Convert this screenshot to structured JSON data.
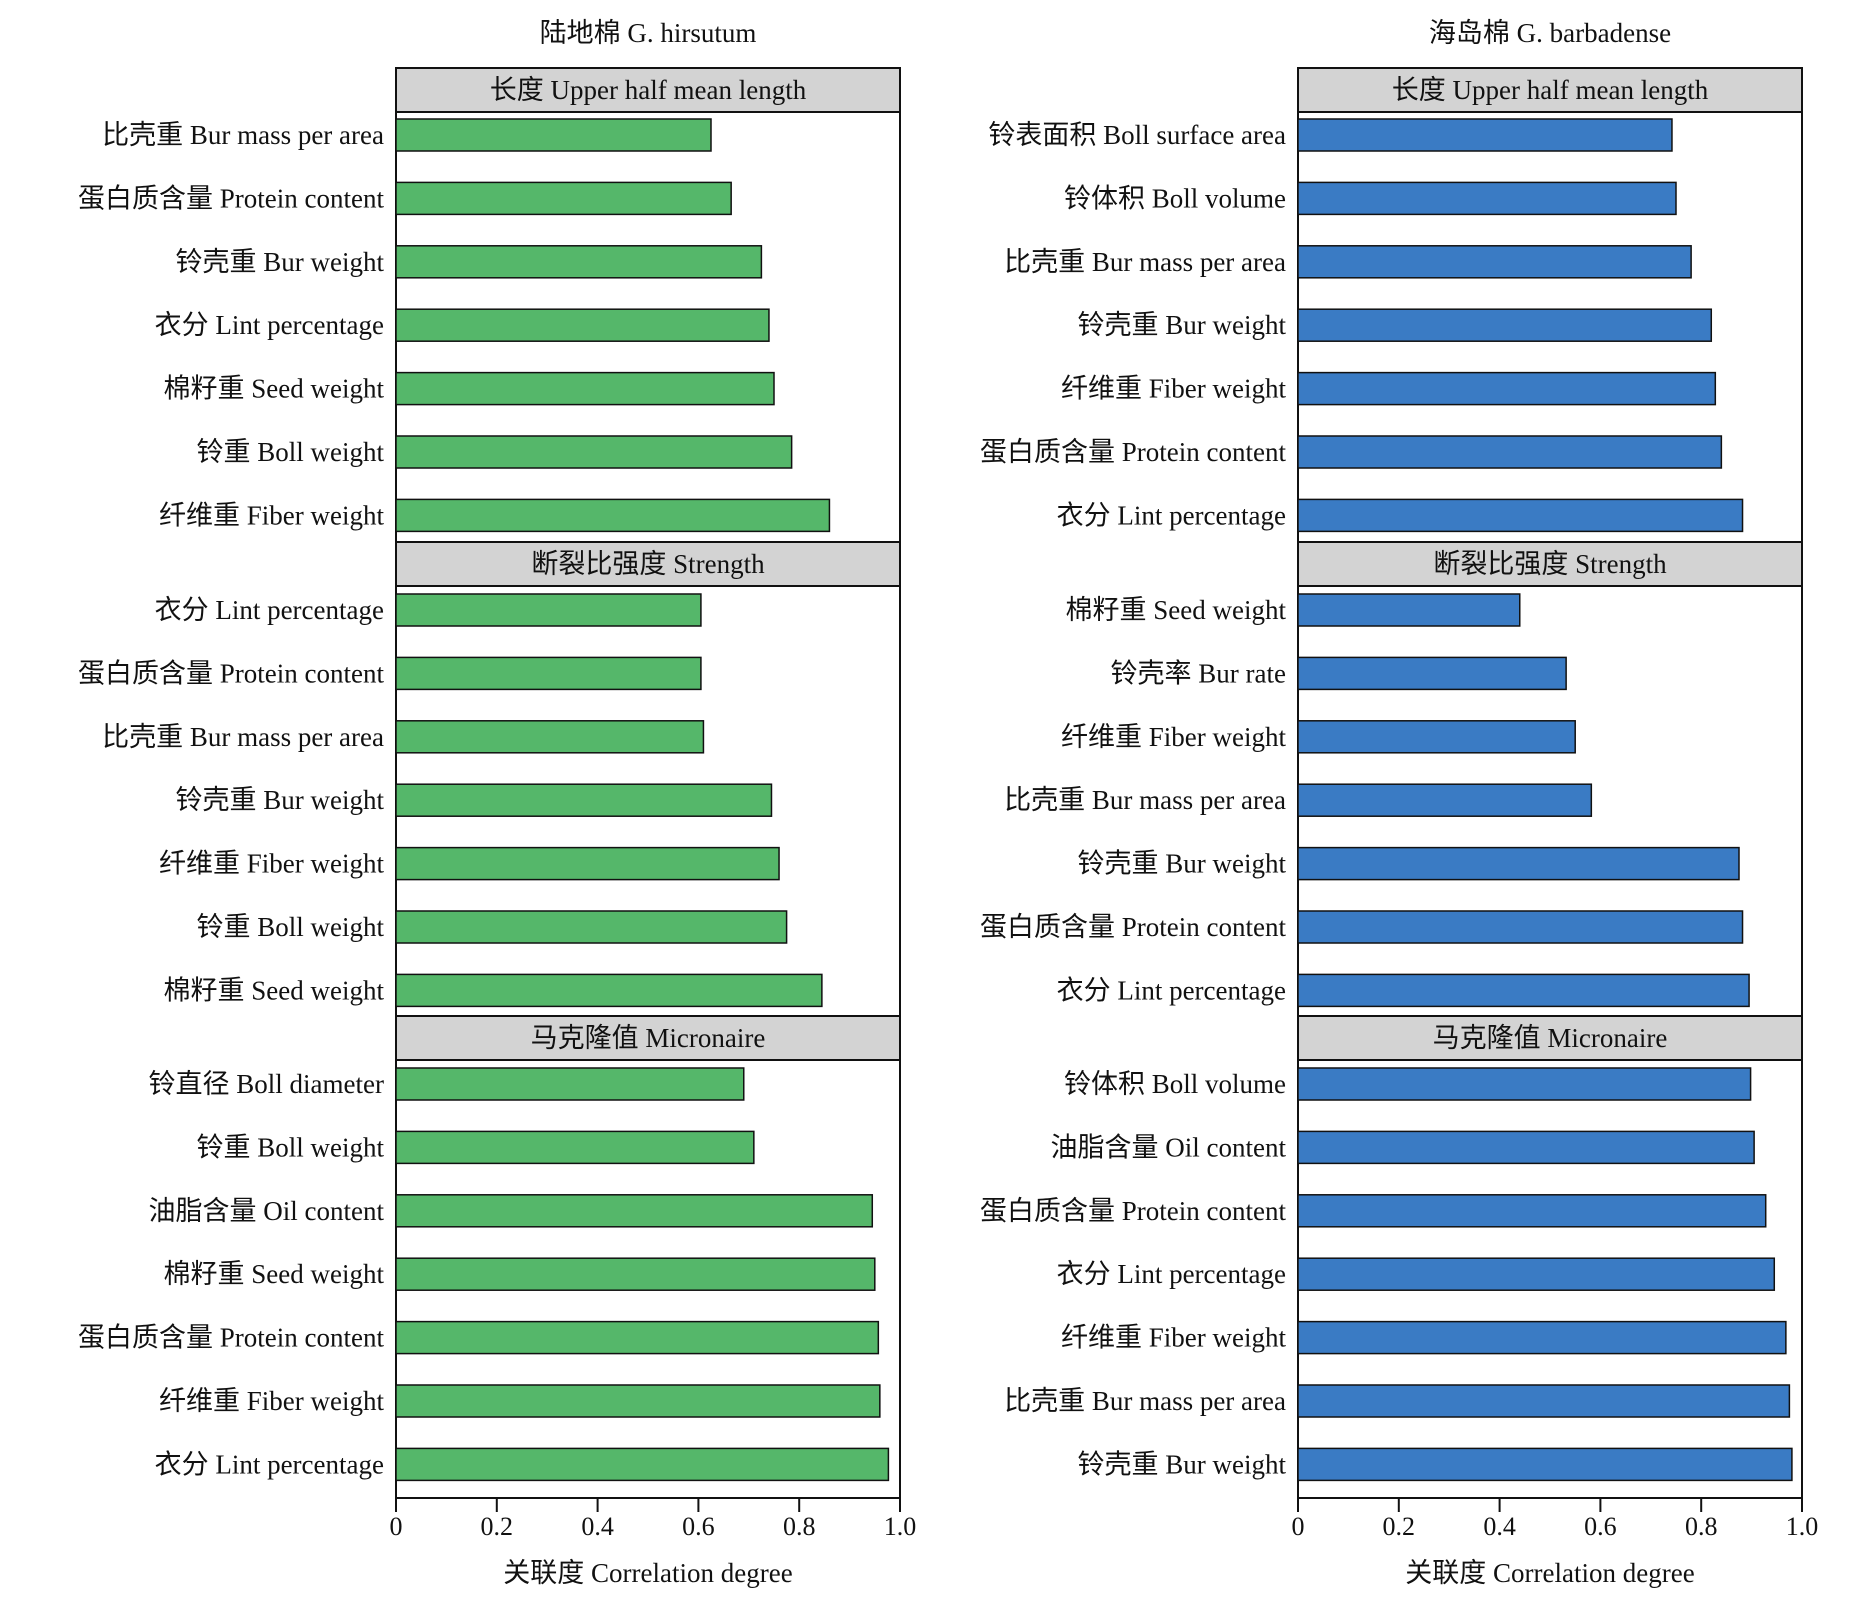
{
  "chart_data": [
    {
      "type": "bar",
      "orientation": "horizontal",
      "species_title": "陆地棉 G. hirsutum",
      "color": "#55b76a",
      "xlabel": "关联度 Correlation degree",
      "xlim": [
        0,
        1.0
      ],
      "xticks": [
        "0",
        "0.2",
        "0.4",
        "0.6",
        "0.8",
        "1.0"
      ],
      "panels": [
        {
          "title": "长度 Upper half mean length",
          "categories": [
            "比壳重 Bur mass per area",
            "蛋白质含量 Protein content",
            "铃壳重 Bur weight",
            "衣分 Lint percentage",
            "棉籽重 Seed weight",
            "铃重 Boll weight",
            "纤维重 Fiber weight"
          ],
          "values": [
            0.625,
            0.665,
            0.725,
            0.74,
            0.75,
            0.785,
            0.86
          ]
        },
        {
          "title": "断裂比强度 Strength",
          "categories": [
            "衣分 Lint percentage",
            "蛋白质含量 Protein content",
            "比壳重 Bur mass per area",
            "铃壳重 Bur weight",
            "纤维重 Fiber weight",
            "铃重 Boll weight",
            "棉籽重 Seed weight"
          ],
          "values": [
            0.605,
            0.605,
            0.61,
            0.745,
            0.76,
            0.775,
            0.845
          ]
        },
        {
          "title": "马克隆值 Micronaire",
          "categories": [
            "铃直径 Boll diameter",
            "铃重 Boll weight",
            "油脂含量 Oil content",
            "棉籽重 Seed weight",
            "蛋白质含量 Protein content",
            "纤维重 Fiber weight",
            "衣分 Lint percentage"
          ],
          "values": [
            0.69,
            0.71,
            0.945,
            0.95,
            0.957,
            0.96,
            0.977
          ]
        }
      ]
    },
    {
      "type": "bar",
      "orientation": "horizontal",
      "species_title": "海岛棉 G. barbadense",
      "color": "#3a7bc4",
      "xlabel": "关联度 Correlation degree",
      "xlim": [
        0,
        1.0
      ],
      "xticks": [
        "0",
        "0.2",
        "0.4",
        "0.6",
        "0.8",
        "1.0"
      ],
      "panels": [
        {
          "title": "长度 Upper half mean length",
          "categories": [
            "铃表面积 Boll surface area",
            "铃体积 Boll volume",
            "比壳重 Bur mass per area",
            "铃壳重 Bur weight",
            "纤维重 Fiber weight",
            "蛋白质含量 Protein content",
            "衣分 Lint percentage"
          ],
          "values": [
            0.742,
            0.75,
            0.78,
            0.82,
            0.828,
            0.84,
            0.882
          ]
        },
        {
          "title": "断裂比强度 Strength",
          "categories": [
            "棉籽重 Seed weight",
            "铃壳率 Bur rate",
            "纤维重 Fiber weight",
            "比壳重 Bur mass per area",
            "铃壳重 Bur weight",
            "蛋白质含量 Protein content",
            "衣分 Lint percentage"
          ],
          "values": [
            0.44,
            0.532,
            0.55,
            0.582,
            0.875,
            0.882,
            0.895
          ]
        },
        {
          "title": "马克隆值 Micronaire",
          "categories": [
            "铃体积 Boll volume",
            "油脂含量 Oil content",
            "蛋白质含量 Protein content",
            "衣分 Lint percentage",
            "纤维重 Fiber weight",
            "比壳重 Bur mass per area",
            "铃壳重 Bur weight"
          ],
          "values": [
            0.898,
            0.905,
            0.928,
            0.945,
            0.968,
            0.975,
            0.98
          ]
        }
      ]
    }
  ]
}
